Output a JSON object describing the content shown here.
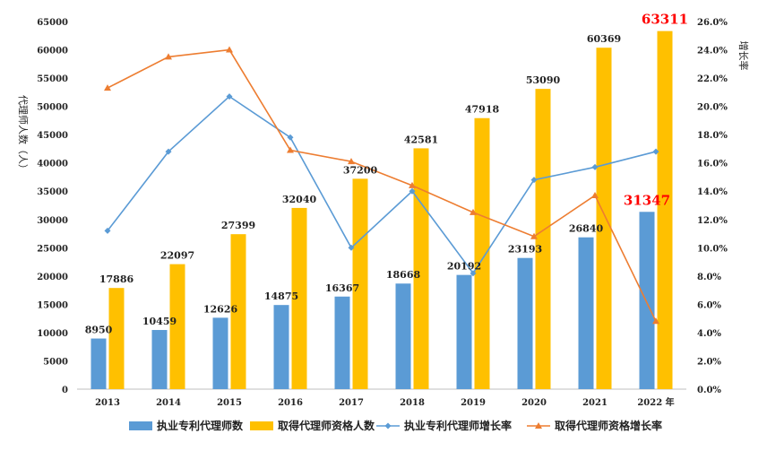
{
  "chart_data": {
    "type": "bar",
    "categories": [
      "2013",
      "2014",
      "2015",
      "2016",
      "2017",
      "2018",
      "2019",
      "2020",
      "2021",
      "2022 年"
    ],
    "series": [
      {
        "name": "执业专利代理师数",
        "type": "bar",
        "axis": "left",
        "color": "#5b9bd5",
        "values": [
          8950,
          10459,
          12626,
          14875,
          16367,
          18668,
          20192,
          23193,
          26840,
          31347
        ],
        "labels": [
          "8950",
          "10459",
          "12626",
          "14875",
          "16367",
          "18668",
          "20192",
          "23193",
          "26840",
          "31347"
        ]
      },
      {
        "name": "取得代理师资格人数",
        "type": "bar",
        "axis": "left",
        "color": "#ffc000",
        "values": [
          17886,
          22097,
          27399,
          32040,
          37200,
          42581,
          47918,
          53090,
          60369,
          63311
        ],
        "labels": [
          "17886",
          "22097",
          "27399",
          "32040",
          "37200",
          "42581",
          "47918",
          "53090",
          "60369",
          "63311"
        ]
      },
      {
        "name": "执业专利代理师增长率",
        "type": "line",
        "axis": "right",
        "color": "#5b9bd5",
        "values": [
          11.2,
          16.8,
          20.7,
          17.8,
          10.0,
          14.0,
          8.2,
          14.8,
          15.7,
          16.8
        ]
      },
      {
        "name": "取得代理师资格增长率",
        "type": "line",
        "axis": "right",
        "color": "#ed7d31",
        "values": [
          21.3,
          23.5,
          24.0,
          16.9,
          16.1,
          14.4,
          12.5,
          10.8,
          13.7,
          4.8
        ]
      }
    ],
    "highlight_labels": [
      "31347",
      "63311"
    ],
    "highlight_color": "#ff0000",
    "ylabel": "代理师人数（人）",
    "y2label": "增长率",
    "ylim": [
      0,
      65000
    ],
    "y2lim": [
      0,
      26
    ],
    "yticks": [
      "0",
      "5000",
      "10000",
      "15000",
      "20000",
      "25000",
      "30000",
      "35000",
      "40000",
      "45000",
      "50000",
      "55000",
      "60000",
      "65000"
    ],
    "y2ticks": [
      "0.0%",
      "2.0%",
      "4.0%",
      "6.0%",
      "8.0%",
      "10.0%",
      "12.0%",
      "14.0%",
      "16.0%",
      "18.0%",
      "20.0%",
      "22.0%",
      "24.0%",
      "26.0%"
    ],
    "grid": false,
    "legend_position": "bottom"
  }
}
